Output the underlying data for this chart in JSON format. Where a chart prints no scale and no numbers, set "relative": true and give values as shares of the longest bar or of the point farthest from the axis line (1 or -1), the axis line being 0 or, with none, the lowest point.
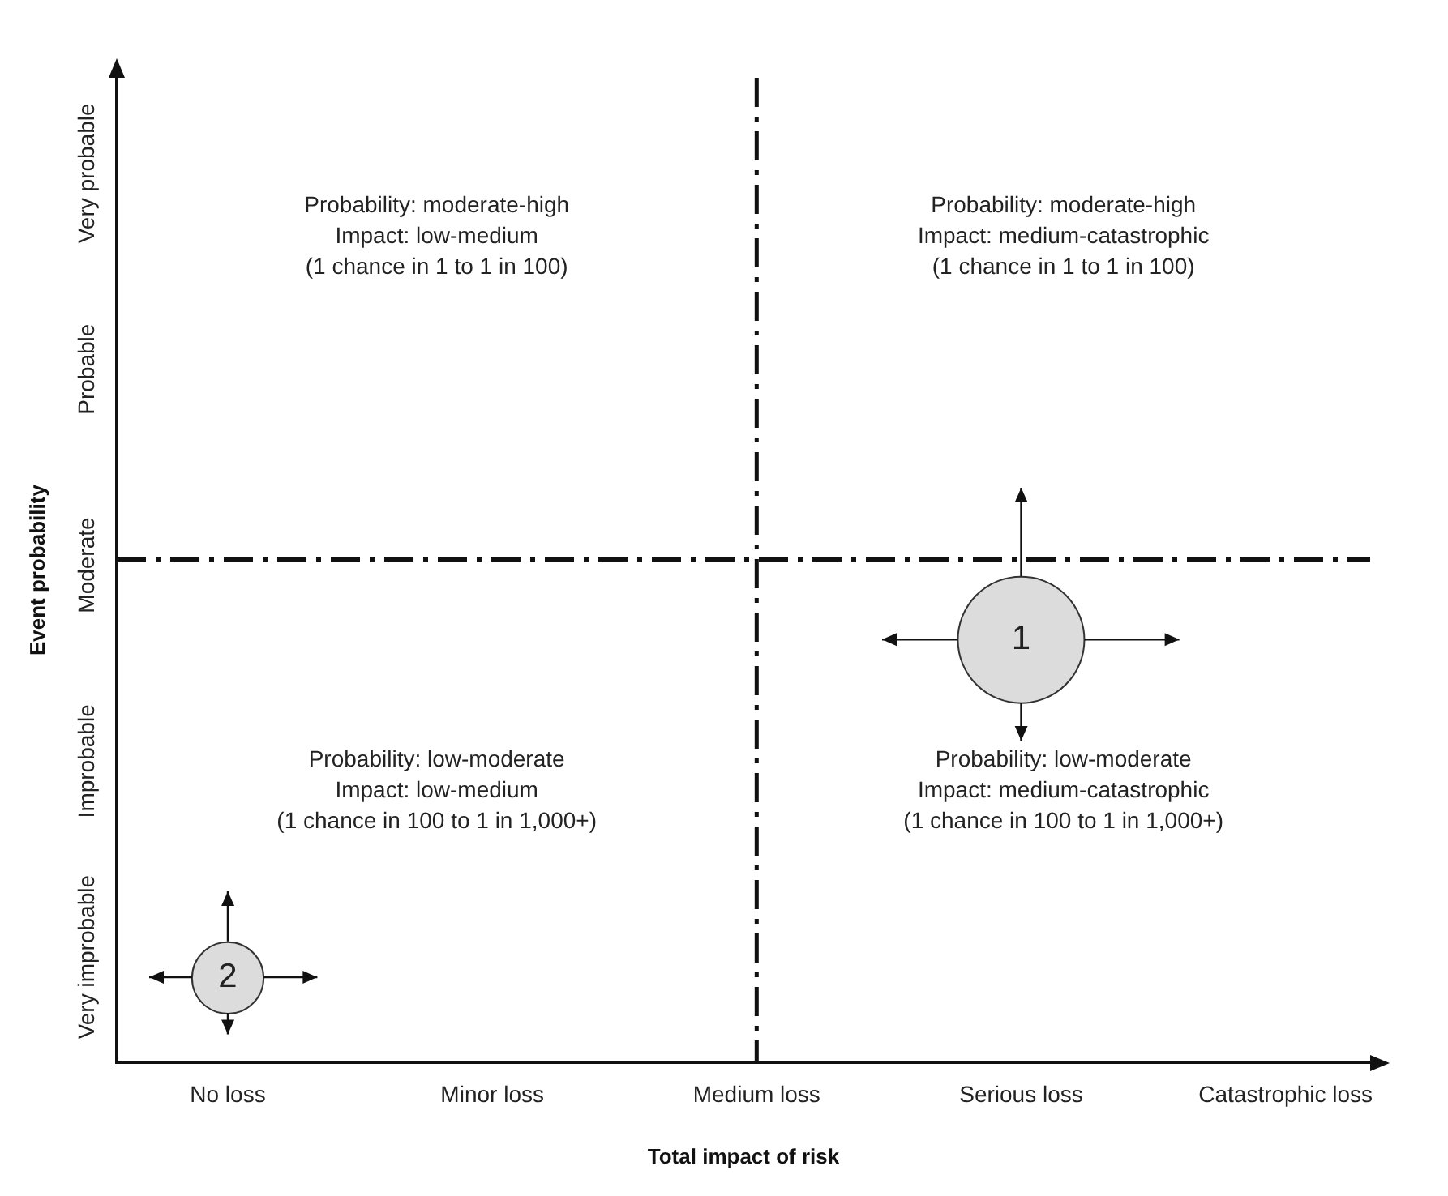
{
  "chart_data": {
    "type": "bubble",
    "xlabel": "Total impact of risk",
    "ylabel": "Event probability",
    "categories": [
      "No loss",
      "Minor loss",
      "Medium loss",
      "Serious loss",
      "Catastrophic loss"
    ],
    "y_categories": [
      "Very probable",
      "Probable",
      "Moderate",
      "Improbable",
      "Very improbable"
    ],
    "relative": true,
    "series": [
      {
        "color": "#dcdcdc",
        "x": [
          "Serious loss",
          "No loss"
        ],
        "values": [
          1,
          0.2
        ],
        "sizes": [
          1,
          0.32
        ]
      }
    ],
    "ref_lines": [
      {
        "axis": "x",
        "value": "Medium loss",
        "line_style": "dashed"
      },
      {
        "axis": "y",
        "value": 1.19,
        "line_style": "dashed"
      }
    ],
    "annotations": [
      "Probability: moderate-high\nImpact: low-medium\n(1 chance in 1 to 1 in 100)",
      "Probability: moderate-high\nImpact: medium-catastrophic\n(1 chance in 1 to 1 in 100)",
      "Probability: low-moderate\nImpact: low-medium\n(1 chance in 100 to 1 in 1,000+)",
      "Probability: low-moderate\nImpact: medium-catastrophic\n(1 chance in 100 to 1 in 1,000+)",
      {
        "text": "1",
        "x": "Serious loss",
        "y": 1
      },
      {
        "text": "2",
        "x": "No loss",
        "y": 0.2
      }
    ],
    "grid": false,
    "legend": false
  }
}
